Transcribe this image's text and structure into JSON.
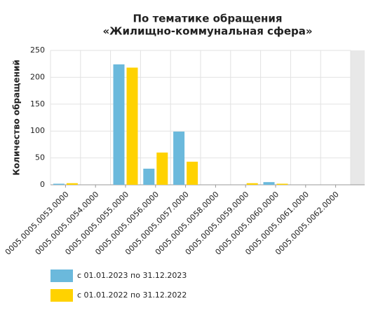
{
  "chart_data": {
    "type": "bar",
    "title": [
      "По тематике обращения",
      "«Жилищно-коммунальная сфера»"
    ],
    "y_label": "Количество обращений",
    "categories": [
      "0005.0005.0053.0000",
      "0005.0005.0054.0000",
      "0005.0005.0055.0000",
      "0005.0005.0056.0000",
      "0005.0005.0057.0000",
      "0005.0005.0058.0000",
      "0005.0005.0059.0000",
      "0005.0005.0060.0000",
      "0005.0005.0061.0000",
      "0005.0005.0062.0000"
    ],
    "series": [
      {
        "name": "с 01.01.2023 по 31.12.2023",
        "color": "#6bb9dc",
        "values": [
          2,
          0,
          224,
          30,
          99,
          0,
          0,
          5,
          0,
          0
        ]
      },
      {
        "name": "с 01.01.2022 по 31.12.2022",
        "color": "#ffd200",
        "values": [
          3,
          0,
          218,
          60,
          43,
          0,
          3,
          2,
          0,
          0
        ]
      }
    ],
    "ylim": [
      0,
      250
    ],
    "yticks": [
      0,
      50,
      100,
      150,
      200,
      250
    ],
    "grid": true
  }
}
